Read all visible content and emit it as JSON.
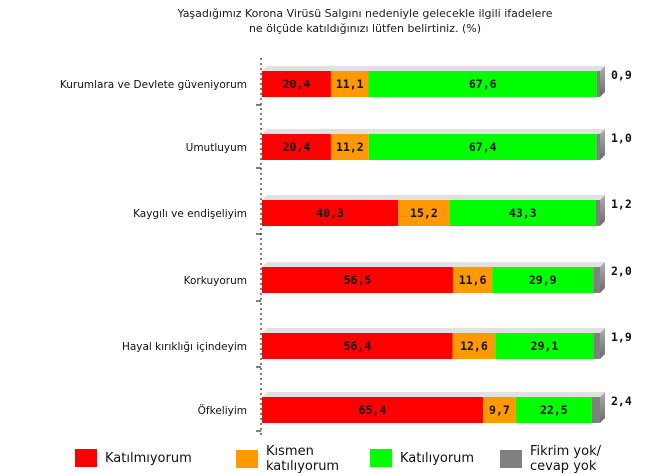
{
  "title_lines": [
    "Yaşadığımız Korona Virüsü Salgını nedeniyle gelecekle ilgili ifadelere",
    "ne ölçüde katıldığınızı lütfen belirtiniz. (%)"
  ],
  "colors": {
    "disagree": "#ff0000",
    "partial": "#ff9900",
    "agree": "#00ff00",
    "no_opinion": "#808080"
  },
  "legend": [
    {
      "label": "Katılmıyorum",
      "color": "#ff0000"
    },
    {
      "label": "Kısmen katılıyorum",
      "color": "#ff9900"
    },
    {
      "label": "Katılıyorum",
      "color": "#00ff00"
    },
    {
      "label": "Fikrim yok/ cevap yok",
      "color": "#808080"
    }
  ],
  "chart_data": {
    "type": "bar",
    "orientation": "horizontal",
    "stacked": true,
    "categories": [
      "Kurumlara ve Devlete güveniyorum",
      "Umutluyum",
      "Kaygılı ve endişeliyim",
      "Korkuyorum",
      "Hayal kırıklığı içindeyim",
      "Öfkeliyim"
    ],
    "series": [
      {
        "name": "Katılmıyorum",
        "values": [
          20.4,
          20.4,
          40.3,
          56.5,
          56.4,
          65.4
        ]
      },
      {
        "name": "Kısmen katılıyorum",
        "values": [
          11.1,
          11.2,
          15.2,
          11.6,
          12.6,
          9.7
        ]
      },
      {
        "name": "Katılıyorum",
        "values": [
          67.6,
          67.4,
          43.3,
          29.9,
          29.1,
          22.5
        ]
      },
      {
        "name": "Fikrim yok/ cevap yok",
        "values": [
          0.9,
          1.0,
          1.2,
          2.0,
          1.9,
          2.4
        ]
      }
    ],
    "value_labels": [
      [
        "20,4",
        "11,1",
        "67,6",
        "0,9"
      ],
      [
        "20,4",
        "11,2",
        "67,4",
        "1,0"
      ],
      [
        "40,3",
        "15,2",
        "43,3",
        "1,2"
      ],
      [
        "56,5",
        "11,6",
        "29,9",
        "2,0"
      ],
      [
        "56,4",
        "12,6",
        "29,1",
        "1,9"
      ],
      [
        "65,4",
        "9,7",
        "22,5",
        "2,4"
      ]
    ],
    "xlim": [
      0,
      100
    ],
    "legend_position": "bottom",
    "grid": false
  }
}
